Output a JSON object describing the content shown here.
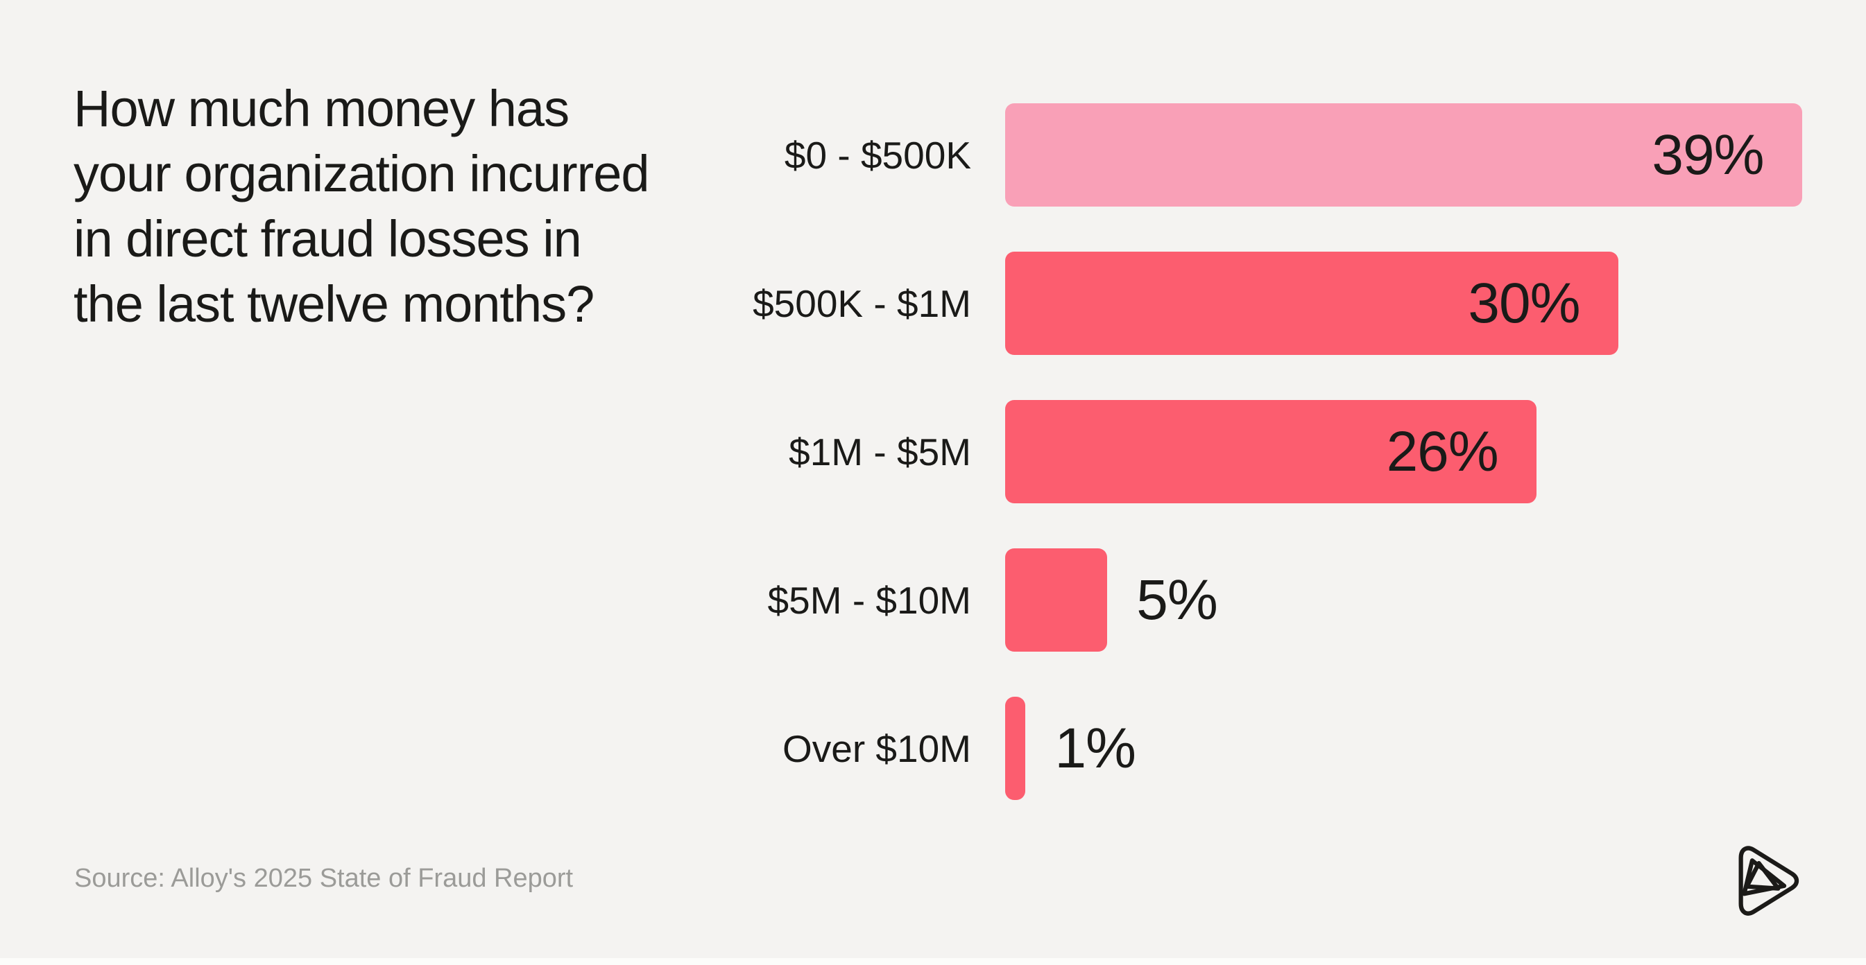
{
  "title": "How much money has\nyour organization incurred\nin direct fraud losses in\nthe last twelve months?",
  "source": "Source: Alloy's 2025 State of Fraud Report",
  "logo_name": "alloy-logo",
  "colors": {
    "background": "#F4F3F1",
    "bar_highlight": "#F9A0B7",
    "bar_default": "#FC5D6F",
    "text": "#1A1A18",
    "source_text": "#9B9B98"
  },
  "chart_data": {
    "type": "bar",
    "orientation": "horizontal",
    "title": "How much money has your organization incurred in direct fraud losses in the last twelve months?",
    "categories": [
      "$0 - $500K",
      "$500K - $1M",
      "$1M - $5M",
      "$5M - $10M",
      "Over $10M"
    ],
    "values": [
      39,
      30,
      26,
      5,
      1
    ],
    "value_labels": [
      "39%",
      "30%",
      "26%",
      "5%",
      "1%"
    ],
    "bar_colors": [
      "#F9A0B7",
      "#FC5D6F",
      "#FC5D6F",
      "#FC5D6F",
      "#FC5D6F"
    ],
    "value_label_positions": [
      "inside",
      "inside",
      "inside",
      "outside",
      "outside"
    ],
    "xlim": [
      0,
      42
    ],
    "grid": false,
    "legend": false,
    "value_format": "percent"
  }
}
